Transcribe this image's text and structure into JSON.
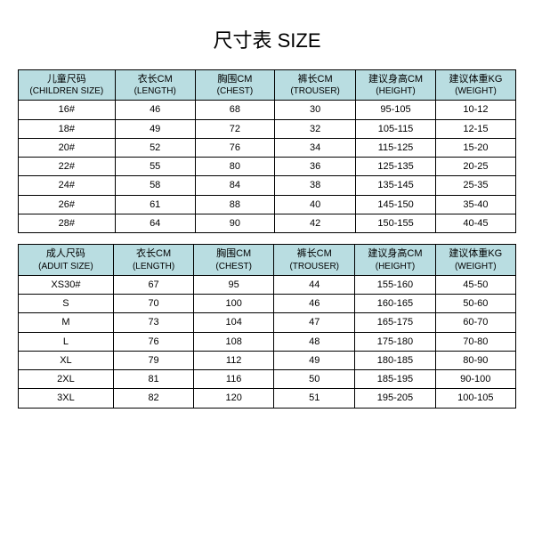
{
  "title": "尺寸表 SIZE",
  "colors": {
    "header_bg": "#b9dde1",
    "border": "#000000",
    "page_bg": "#ffffff",
    "text": "#000000"
  },
  "children_table": {
    "columns": [
      {
        "top": "儿童尺码",
        "sub": "(CHILDREN SIZE)"
      },
      {
        "top": "衣长CM",
        "sub": "(LENGTH)"
      },
      {
        "top": "胸围CM",
        "sub": "(CHEST)"
      },
      {
        "top": "裤长CM",
        "sub": "(TROUSER)"
      },
      {
        "top": "建议身高CM",
        "sub": "(HEIGHT)"
      },
      {
        "top": "建议体重KG",
        "sub": "(WEIGHT)"
      }
    ],
    "rows": [
      [
        "16#",
        "46",
        "68",
        "30",
        "95-105",
        "10-12"
      ],
      [
        "18#",
        "49",
        "72",
        "32",
        "105-115",
        "12-15"
      ],
      [
        "20#",
        "52",
        "76",
        "34",
        "115-125",
        "15-20"
      ],
      [
        "22#",
        "55",
        "80",
        "36",
        "125-135",
        "20-25"
      ],
      [
        "24#",
        "58",
        "84",
        "38",
        "135-145",
        "25-35"
      ],
      [
        "26#",
        "61",
        "88",
        "40",
        "145-150",
        "35-40"
      ],
      [
        "28#",
        "64",
        "90",
        "42",
        "150-155",
        "40-45"
      ]
    ]
  },
  "adult_table": {
    "columns": [
      {
        "top": "成人尺码",
        "sub": "(ADUIT SIZE)"
      },
      {
        "top": "衣长CM",
        "sub": "(LENGTH)"
      },
      {
        "top": "胸围CM",
        "sub": "(CHEST)"
      },
      {
        "top": "裤长CM",
        "sub": "(TROUSER)"
      },
      {
        "top": "建议身高CM",
        "sub": "(HEIGHT)"
      },
      {
        "top": "建议体重KG",
        "sub": "(WEIGHT)"
      }
    ],
    "rows": [
      [
        "XS30#",
        "67",
        "95",
        "44",
        "155-160",
        "45-50"
      ],
      [
        "S",
        "70",
        "100",
        "46",
        "160-165",
        "50-60"
      ],
      [
        "M",
        "73",
        "104",
        "47",
        "165-175",
        "60-70"
      ],
      [
        "L",
        "76",
        "108",
        "48",
        "175-180",
        "70-80"
      ],
      [
        "XL",
        "79",
        "112",
        "49",
        "180-185",
        "80-90"
      ],
      [
        "2XL",
        "81",
        "116",
        "50",
        "185-195",
        "90-100"
      ],
      [
        "3XL",
        "82",
        "120",
        "51",
        "195-205",
        "100-105"
      ]
    ]
  }
}
